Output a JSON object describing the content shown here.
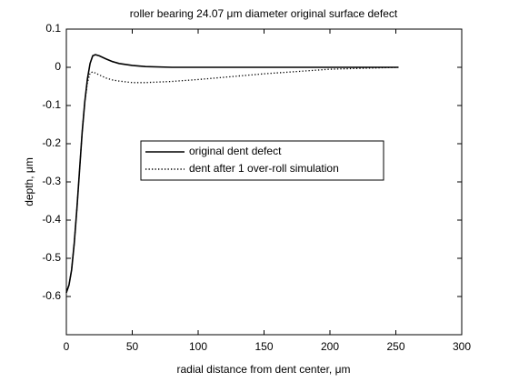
{
  "chart_data": {
    "type": "line",
    "title": "roller bearing 24.07 μm diameter original surface defect",
    "x_label": "radial distance from dent center, μm",
    "y_label": "depth, μm",
    "xlim": [
      0,
      300
    ],
    "xticks": [
      0,
      50,
      100,
      150,
      200,
      250,
      300
    ],
    "ylim": [
      -0.7,
      0.1
    ],
    "yticks": [
      0.1,
      0,
      -0.1,
      -0.2,
      -0.3,
      -0.4,
      -0.5,
      -0.6
    ],
    "legend_position": "center",
    "series": [
      {
        "name": "original dent defect",
        "color": "#000000",
        "style": "solid",
        "x": [
          0,
          2,
          4,
          6,
          8,
          10,
          12,
          14,
          16,
          18,
          20,
          22,
          25,
          30,
          35,
          40,
          50,
          60,
          80,
          100,
          150,
          200,
          252
        ],
        "values": [
          -0.59,
          -0.57,
          -0.53,
          -0.46,
          -0.37,
          -0.27,
          -0.17,
          -0.09,
          -0.03,
          0.01,
          0.03,
          0.033,
          0.03,
          0.022,
          0.015,
          0.01,
          0.005,
          0.002,
          0,
          0,
          0,
          0,
          0
        ]
      },
      {
        "name": "dent after 1 over-roll simulation",
        "color": "#000000",
        "style": "dotted",
        "x": [
          0,
          2,
          4,
          6,
          8,
          10,
          12,
          14,
          16,
          18,
          20,
          22,
          25,
          30,
          35,
          40,
          50,
          60,
          80,
          100,
          150,
          200,
          252
        ],
        "values": [
          -0.59,
          -0.57,
          -0.53,
          -0.46,
          -0.37,
          -0.27,
          -0.17,
          -0.09,
          -0.04,
          -0.015,
          -0.012,
          -0.015,
          -0.02,
          -0.028,
          -0.033,
          -0.036,
          -0.04,
          -0.04,
          -0.037,
          -0.032,
          -0.017,
          -0.005,
          0
        ]
      }
    ]
  }
}
